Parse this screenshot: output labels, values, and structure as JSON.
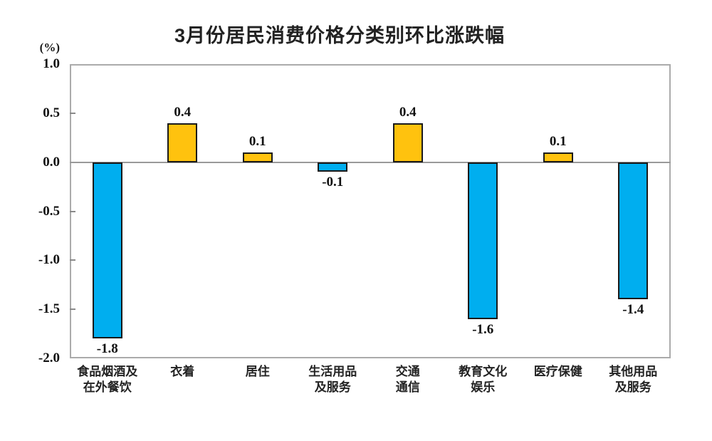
{
  "chart": {
    "title": "3月份居民消费价格分类别环比涨跌幅",
    "unit_label": "(%)"
  },
  "chart_data": {
    "type": "bar",
    "title": "3月份居民消费价格分类别环比涨跌幅",
    "xlabel": "",
    "ylabel": "(%)",
    "categories": [
      "食品烟酒及\n在外餐饮",
      "衣着",
      "居住",
      "生活用品\n及服务",
      "交通\n通信",
      "教育文化\n娱乐",
      "医疗保健",
      "其他用品\n及服务"
    ],
    "values": [
      -1.8,
      0.4,
      0.1,
      -0.1,
      0.4,
      -1.6,
      0.1,
      -1.4
    ],
    "value_labels": [
      "-1.8",
      "0.4",
      "0.1",
      "-0.1",
      "0.4",
      "-1.6",
      "0.1",
      "-1.4"
    ],
    "ylim": [
      -2.0,
      1.0
    ],
    "yticks": [
      "1.0",
      "0.5",
      "0.0",
      "-0.5",
      "-1.0",
      "-1.5",
      "-2.0"
    ],
    "grid": false,
    "legend": "none",
    "colors": {
      "positive": "#FFC20E",
      "negative": "#00AEEF",
      "bar_border": "#1a1a1a",
      "axis_frame": "#ababab",
      "zero_line": "#9a9a9a",
      "text": "#1a1a1a"
    }
  }
}
